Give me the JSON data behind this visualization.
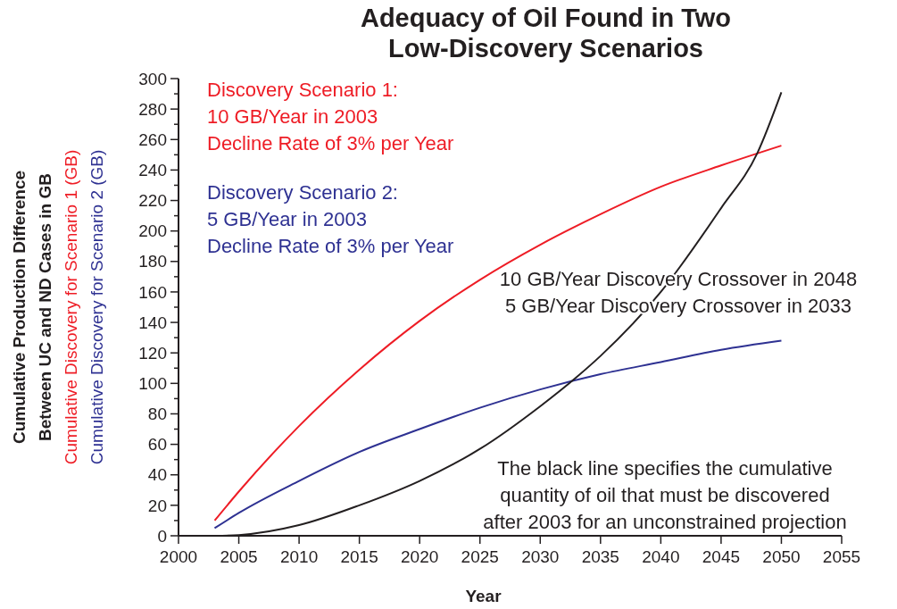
{
  "chart_data": {
    "type": "line",
    "title": "Adequacy of Oil Found in Two\nLow-Discovery Scenarios",
    "xlabel": "Year",
    "ylabel": "Cumulative Production Difference\nBetween UC and ND Cases in GB",
    "xlim": [
      2000,
      2055
    ],
    "xticks": [
      2000,
      2005,
      2010,
      2015,
      2020,
      2025,
      2030,
      2035,
      2040,
      2045,
      2050,
      2055
    ],
    "ylim": [
      0,
      300
    ],
    "yticks": [
      0,
      {
        "value": 10,
        "label": null
      },
      20,
      {
        "value": 30,
        "label": null
      },
      40,
      {
        "value": 50,
        "label": null
      },
      60,
      {
        "value": 70,
        "label": null
      },
      80,
      {
        "value": 90,
        "label": null
      },
      100,
      {
        "value": 110,
        "label": null
      },
      120,
      {
        "value": 130,
        "label": null
      },
      140,
      {
        "value": 150,
        "label": null
      },
      160,
      {
        "value": 170,
        "label": null
      },
      180,
      {
        "value": 190,
        "label": null
      },
      200,
      {
        "value": 210,
        "label": null
      },
      220,
      {
        "value": 230,
        "label": null
      },
      240,
      {
        "value": 250,
        "label": null
      },
      260,
      {
        "value": 270,
        "label": null
      },
      280,
      {
        "value": 290,
        "label": null
      },
      300
    ],
    "grid": false,
    "marker": "none",
    "line_style": "solid",
    "series": [
      {
        "name": "Cumulative Discovery for Scenario 1 (GB)",
        "color": "#ee1c25",
        "x": [
          2003,
          2005,
          2010,
          2015,
          2020,
          2025,
          2030,
          2035,
          2040,
          2045,
          2050
        ],
        "values": [
          10,
          29,
          72,
          109,
          141,
          168,
          191,
          211,
          229,
          243,
          256
        ]
      },
      {
        "name": "Cumulative Discovery for Scenario 2 (GB)",
        "color": "#2e3192",
        "x": [
          2003,
          2005,
          2010,
          2015,
          2020,
          2025,
          2030,
          2035,
          2040,
          2045,
          2050
        ],
        "values": [
          5,
          15,
          36,
          55,
          70,
          84,
          96,
          106,
          114,
          122,
          128
        ]
      },
      {
        "color": "#231f20",
        "x": [
          2003,
          2005,
          2010,
          2015,
          2020,
          2025,
          2030,
          2033,
          2035,
          2040,
          2045,
          2048,
          2050
        ],
        "values": [
          0,
          0.5,
          7,
          20,
          36,
          57,
          85,
          104,
          118,
          160,
          215,
          251,
          291
        ]
      }
    ],
    "annotations": [
      "Discovery Scenario 1:\n10 GB/Year in 2003\nDecline Rate of 3% per Year",
      "Discovery Scenario 2:\n5 GB/Year in 2003\nDecline Rate of 3% per Year",
      "10 GB/Year Discovery Crossover in 2048\n5 GB/Year Discovery Crossover in 2033",
      "The black line specifies the cumulative\nquantity of oil that must be discovered\nafter 2003 for an unconstrained projection"
    ]
  }
}
